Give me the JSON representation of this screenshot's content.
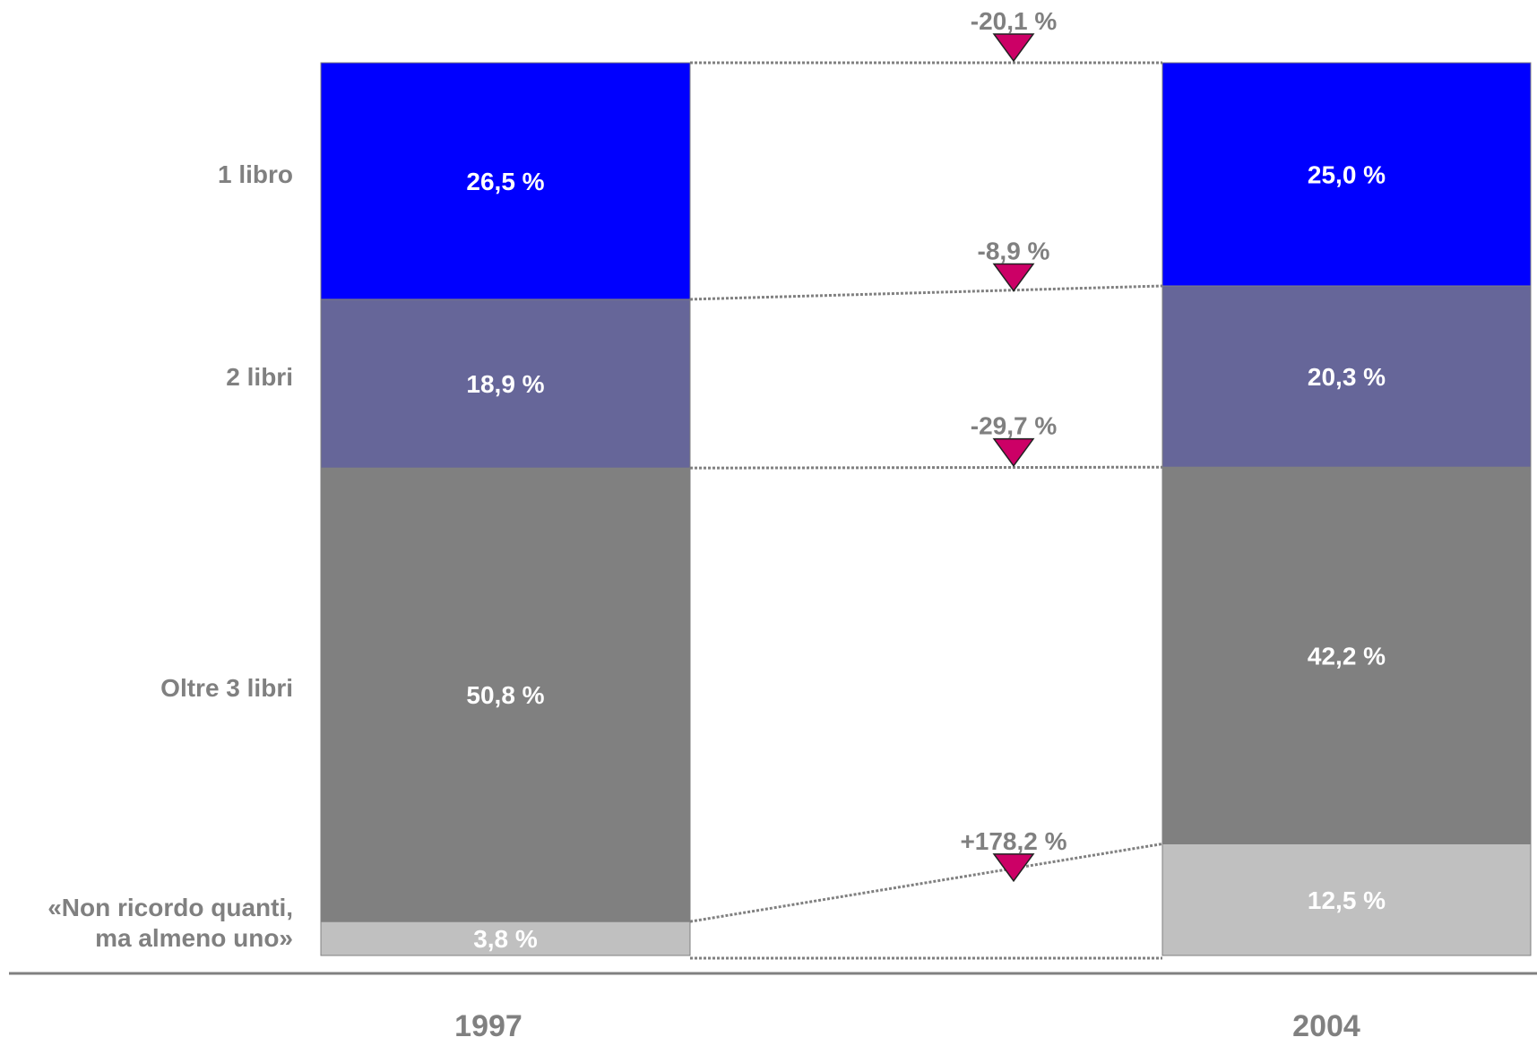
{
  "chart_data": {
    "type": "bar",
    "stacked": true,
    "categories": [
      "1997",
      "2004"
    ],
    "series": [
      {
        "name": "«Non ricordo quanti, ma almeno uno»",
        "label_lines": [
          "«Non ricordo quanti,",
          "ma almeno uno»"
        ],
        "color": "#c0c0c0",
        "values": [
          3.8,
          12.5
        ],
        "value_labels": [
          "3,8 %",
          "12,5 %"
        ],
        "change": "+178,2 %"
      },
      {
        "name": "Oltre 3 libri",
        "label_lines": [
          "Oltre 3 libri"
        ],
        "color": "#808080",
        "values": [
          50.8,
          42.2
        ],
        "value_labels": [
          "50,8 %",
          "42,2 %"
        ],
        "change": "-29,7 %"
      },
      {
        "name": "2 libri",
        "label_lines": [
          "2 libri"
        ],
        "color": "#666699",
        "values": [
          18.9,
          20.3
        ],
        "value_labels": [
          "18,9 %",
          "20,3 %"
        ],
        "change": "-8,9 %"
      },
      {
        "name": "1 libro",
        "label_lines": [
          "1 libro"
        ],
        "color": "#0000ff",
        "values": [
          26.5,
          25.0
        ],
        "value_labels": [
          "26,5 %",
          "25,0 %"
        ],
        "change": "-20,1 %"
      }
    ],
    "total_change": "-20,1 %",
    "arrow_color": "#cc0066",
    "connector_color": "#808080",
    "ylim": [
      0,
      100
    ],
    "grid": false,
    "legend": "left"
  }
}
